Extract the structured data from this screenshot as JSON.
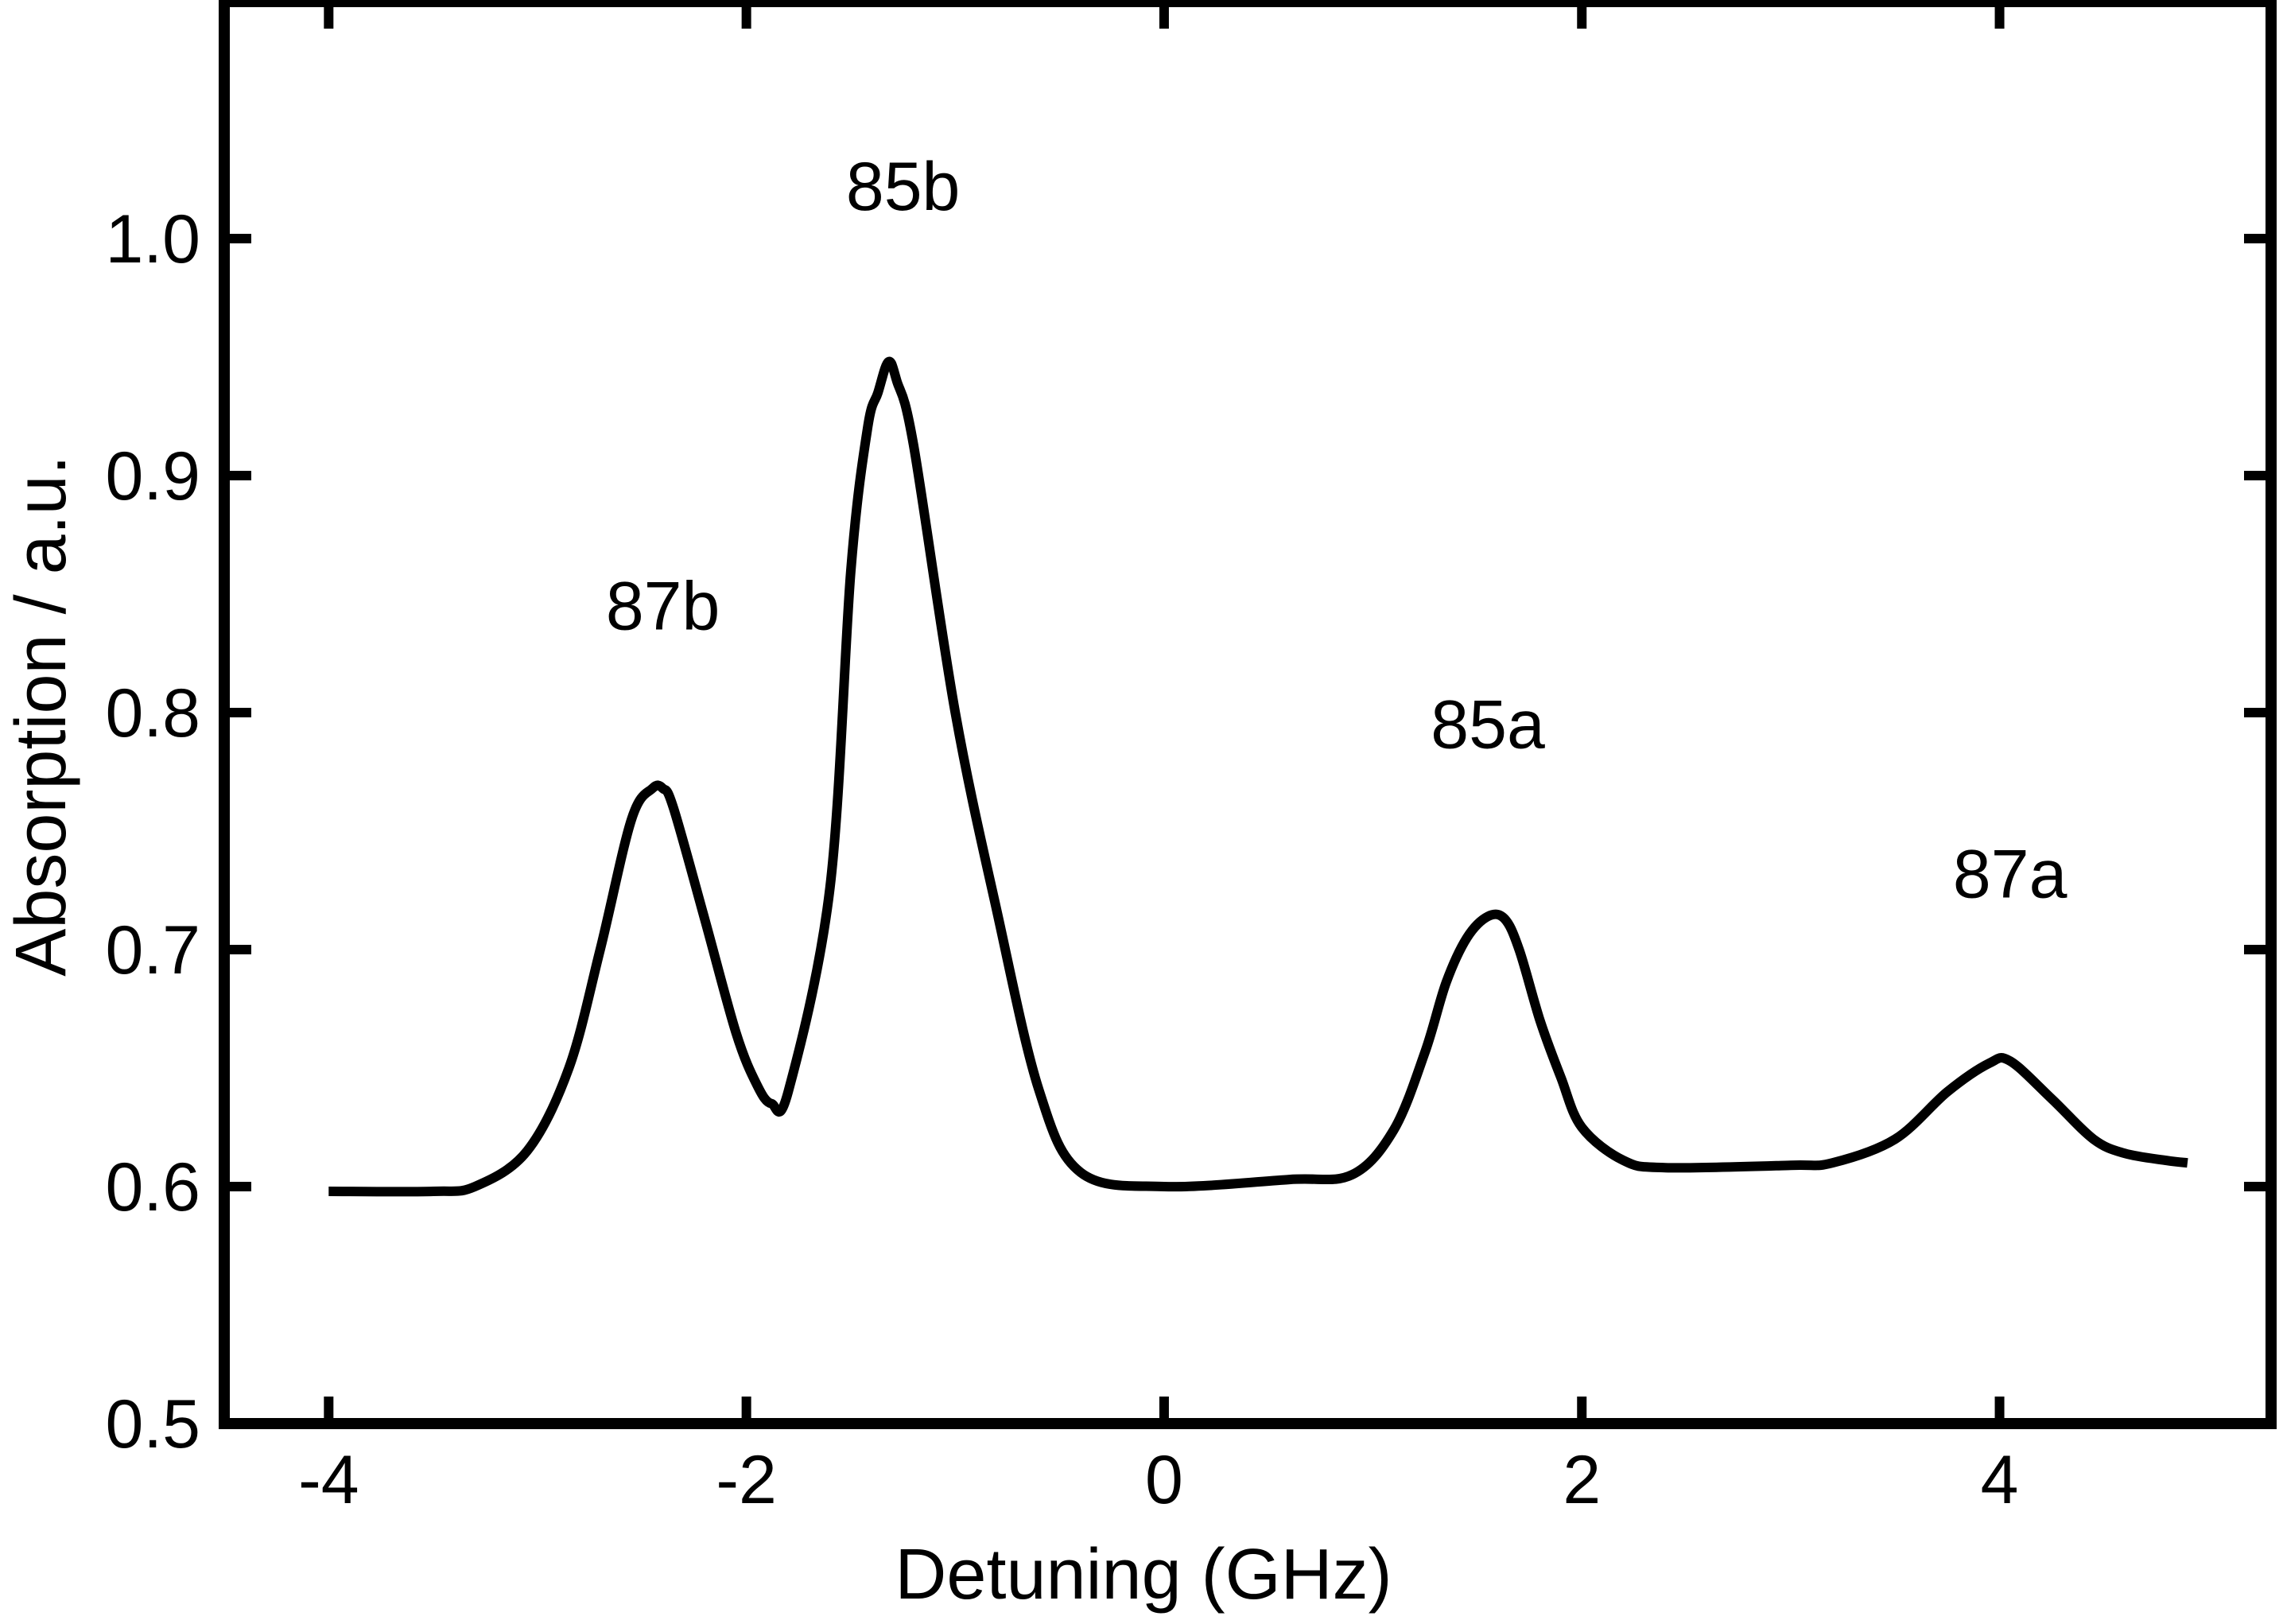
{
  "chart_data": {
    "type": "line",
    "title": "",
    "xlabel": "Detuning (GHz)",
    "ylabel": "Absorption / a.u.",
    "xlim": [
      -4.5,
      5.3
    ],
    "ylim": [
      0.5,
      1.1
    ],
    "xticks": [
      -4,
      -2,
      0,
      2,
      4
    ],
    "xtick_labels": [
      "-4",
      "-2",
      "0",
      "2",
      "4"
    ],
    "yticks": [
      0.5,
      0.6,
      0.7,
      0.8,
      0.9,
      1.0
    ],
    "ytick_labels": [
      "0.5",
      "0.6",
      "0.7",
      "0.8",
      "0.9",
      "1.0"
    ],
    "grid": false,
    "line_color": "#000000",
    "series": [
      {
        "x": [
          -4.0,
          -3.5,
          -3.3,
          -3.05,
          -2.85,
          -2.7,
          -2.55,
          -2.45,
          -2.4,
          -2.35,
          -2.2,
          -2.05,
          -1.95,
          -1.88,
          -1.8,
          -1.6,
          -1.5,
          -1.42,
          -1.37,
          -1.32,
          -1.28,
          -1.2,
          -1.0,
          -0.8,
          -0.6,
          -0.4,
          0.0,
          0.6,
          0.9,
          1.1,
          1.25,
          1.35,
          1.45,
          1.55,
          1.63,
          1.7,
          1.8,
          1.9,
          2.0,
          2.2,
          2.4,
          3.0,
          3.2,
          3.5,
          3.75,
          3.95,
          4.05,
          4.25,
          4.45,
          4.6,
          4.8,
          4.9
        ],
        "y": [
          0.598,
          0.598,
          0.6,
          0.615,
          0.65,
          0.7,
          0.755,
          0.768,
          0.768,
          0.76,
          0.713,
          0.665,
          0.643,
          0.635,
          0.64,
          0.726,
          0.86,
          0.92,
          0.935,
          0.948,
          0.94,
          0.913,
          0.8,
          0.716,
          0.641,
          0.606,
          0.6,
          0.603,
          0.605,
          0.624,
          0.657,
          0.686,
          0.705,
          0.714,
          0.713,
          0.7,
          0.67,
          0.646,
          0.625,
          0.611,
          0.608,
          0.609,
          0.61,
          0.62,
          0.64,
          0.652,
          0.653,
          0.637,
          0.62,
          0.614,
          0.611,
          0.61
        ]
      }
    ],
    "annotations": [
      {
        "text": "87b",
        "x": -2.4,
        "y": 0.835
      },
      {
        "text": "85b",
        "x": -1.25,
        "y": 1.012
      },
      {
        "text": "85a",
        "x": 1.55,
        "y": 0.785
      },
      {
        "text": "87a",
        "x": 4.05,
        "y": 0.722
      }
    ]
  }
}
